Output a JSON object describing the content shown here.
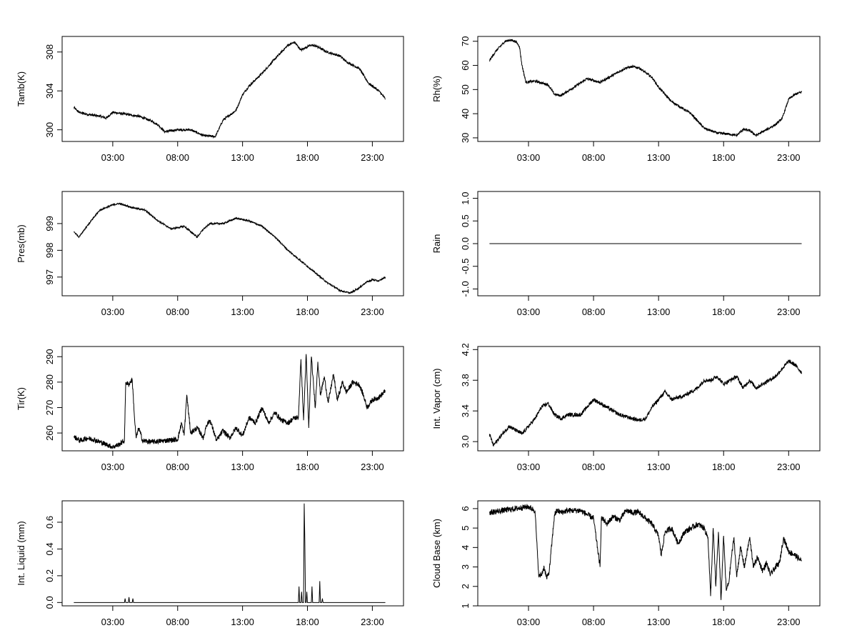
{
  "figure": {
    "background": "#ffffff",
    "line_color": "#000000",
    "x_tick_labels": [
      "03:00",
      "08:00",
      "13:00",
      "18:00",
      "23:00"
    ],
    "x_tick_hours": [
      3,
      8,
      13,
      18,
      23
    ],
    "x_range_hours": [
      -0.9,
      25.4
    ]
  },
  "chart_data": [
    {
      "type": "line",
      "ylabel": "Tamb(K)",
      "ylim": [
        298.8,
        309.6
      ],
      "yticks": [
        300,
        304,
        308
      ],
      "ytick_labels": [
        "300",
        "304",
        "308"
      ],
      "grid": false,
      "noise": 0.12,
      "series": [
        {
          "x": [
            0.0,
            0.4,
            1.0,
            2.0,
            2.5,
            3.0,
            4.0,
            5.0,
            6.0,
            6.5,
            7.0,
            8.0,
            9.0,
            10.0,
            10.9,
            11.5,
            12.0,
            12.5,
            13.0,
            13.5,
            14.5,
            15.5,
            16.5,
            17.0,
            17.5,
            18.2,
            18.7,
            19.5,
            20.5,
            21.0,
            22.0,
            22.7,
            23.5,
            24.0
          ],
          "y": [
            302.3,
            301.8,
            301.6,
            301.4,
            301.2,
            301.8,
            301.6,
            301.4,
            300.9,
            300.5,
            299.8,
            300.0,
            300.0,
            299.4,
            299.3,
            301.0,
            301.5,
            302.0,
            303.6,
            304.5,
            305.8,
            307.3,
            308.7,
            309.0,
            308.2,
            308.7,
            308.6,
            308.0,
            307.6,
            307.0,
            306.3,
            304.8,
            304.0,
            303.2
          ]
        }
      ]
    },
    {
      "type": "line",
      "ylabel": "Rh(%)",
      "ylim": [
        28.5,
        72.0
      ],
      "yticks": [
        30,
        40,
        50,
        60,
        70
      ],
      "ytick_labels": [
        "30",
        "40",
        "50",
        "60",
        "70"
      ],
      "grid": false,
      "noise": 0.5,
      "series": [
        {
          "x": [
            0.0,
            0.5,
            1.2,
            1.6,
            2.0,
            2.3,
            2.5,
            2.8,
            3.5,
            4.5,
            5.0,
            5.5,
            6.5,
            7.5,
            8.5,
            9.5,
            10.5,
            11.0,
            11.5,
            12.0,
            12.5,
            13.0,
            14.0,
            15.5,
            16.5,
            17.5,
            18.5,
            19.0,
            19.5,
            20.0,
            20.5,
            21.0,
            21.5,
            22.0,
            22.5,
            23.0,
            23.5,
            24.0
          ],
          "y": [
            62.0,
            66.0,
            70.0,
            70.5,
            70.0,
            68.0,
            60.0,
            53.0,
            53.5,
            52.0,
            48.0,
            47.5,
            51.0,
            54.5,
            53.0,
            56.0,
            59.0,
            59.5,
            59.0,
            57.0,
            55.0,
            51.0,
            45.0,
            40.0,
            34.0,
            32.0,
            31.5,
            31.0,
            33.5,
            33.0,
            31.0,
            32.5,
            34.0,
            35.5,
            38.0,
            46.0,
            48.0,
            49.0
          ]
        }
      ]
    },
    {
      "type": "line",
      "ylabel": "Pres(mb)",
      "ylim": [
        996.3,
        1000.2
      ],
      "yticks": [
        997,
        998,
        999
      ],
      "ytick_labels": [
        "997",
        "998",
        "999"
      ],
      "grid": false,
      "noise": 0.03,
      "series": [
        {
          "x": [
            0.0,
            0.4,
            1.0,
            1.5,
            2.0,
            2.5,
            3.0,
            3.5,
            4.5,
            5.5,
            6.5,
            7.5,
            8.5,
            9.5,
            10.0,
            10.5,
            11.5,
            12.5,
            13.5,
            14.5,
            15.5,
            16.5,
            17.5,
            18.5,
            19.5,
            20.5,
            21.3,
            22.0,
            22.5,
            23.0,
            23.5,
            24.0
          ],
          "y": [
            998.7,
            998.5,
            998.9,
            999.2,
            999.5,
            999.6,
            999.7,
            999.75,
            999.6,
            999.5,
            999.1,
            998.8,
            998.9,
            998.5,
            998.8,
            999.0,
            999.0,
            999.2,
            999.1,
            998.9,
            998.5,
            998.0,
            997.6,
            997.2,
            996.8,
            996.5,
            996.4,
            996.6,
            996.8,
            996.9,
            996.85,
            997.0
          ]
        }
      ]
    },
    {
      "type": "line",
      "ylabel": "Rain",
      "ylim": [
        -1.15,
        1.15
      ],
      "yticks": [
        -1.0,
        -0.5,
        0.0,
        0.5,
        1.0
      ],
      "ytick_labels": [
        "-1.0",
        "-0.5",
        "0.0",
        "0.5",
        "1.0"
      ],
      "grid": false,
      "noise": 0,
      "series": [
        {
          "x": [
            0.0,
            24.0
          ],
          "y": [
            0.0,
            0.0
          ]
        }
      ]
    },
    {
      "type": "line",
      "ylabel": "Tir(K)",
      "ylim": [
        253.0,
        294.0
      ],
      "yticks": [
        260,
        270,
        280,
        290
      ],
      "ytick_labels": [
        "260",
        "270",
        "280",
        "290"
      ],
      "grid": false,
      "noise": 1.0,
      "series": [
        {
          "x": [
            0.0,
            0.5,
            1.0,
            1.5,
            2.0,
            2.5,
            3.0,
            3.5,
            3.9,
            4.0,
            4.2,
            4.5,
            4.7,
            4.8,
            5.0,
            5.3,
            6.0,
            7.0,
            8.0,
            8.3,
            8.5,
            8.7,
            9.0,
            9.5,
            10.0,
            10.2,
            10.5,
            11.0,
            11.5,
            12.0,
            12.5,
            13.0,
            13.5,
            14.0,
            14.5,
            15.0,
            15.5,
            16.0,
            16.5,
            17.0,
            17.3,
            17.5,
            17.7,
            17.9,
            18.1,
            18.3,
            18.6,
            18.8,
            19.0,
            19.3,
            19.6,
            20.0,
            20.3,
            20.7,
            21.0,
            21.5,
            22.0,
            22.3,
            22.6,
            23.0,
            23.5,
            24.0
          ],
          "y": [
            258.5,
            257.0,
            258.0,
            257.5,
            256.5,
            255.5,
            254.5,
            255.5,
            257.0,
            280.0,
            279.0,
            281.0,
            264.0,
            258.0,
            262.0,
            257.0,
            256.5,
            257.0,
            257.5,
            264.0,
            259.0,
            275.0,
            260.0,
            262.0,
            258.0,
            263.0,
            265.0,
            257.0,
            261.0,
            258.0,
            262.0,
            259.0,
            266.0,
            264.0,
            270.0,
            264.0,
            268.0,
            265.0,
            264.0,
            266.0,
            266.0,
            289.0,
            265.0,
            291.0,
            262.0,
            290.0,
            270.0,
            288.0,
            275.0,
            282.0,
            272.0,
            283.0,
            273.0,
            280.0,
            276.0,
            280.0,
            279.0,
            275.0,
            270.0,
            273.0,
            274.0,
            276.5
          ]
        }
      ]
    },
    {
      "type": "line",
      "ylabel": "Int. Vapor (cm)",
      "ylim": [
        2.88,
        4.24
      ],
      "yticks": [
        3.0,
        3.4,
        3.8,
        4.2
      ],
      "ytick_labels": [
        "3.0",
        "3.4",
        "3.8",
        "4.2"
      ],
      "grid": false,
      "noise": 0.025,
      "series": [
        {
          "x": [
            0.0,
            0.3,
            1.0,
            1.5,
            2.0,
            2.5,
            3.0,
            3.5,
            4.0,
            4.5,
            5.0,
            5.5,
            6.0,
            7.0,
            8.0,
            9.0,
            10.0,
            11.0,
            11.5,
            12.0,
            12.5,
            13.0,
            13.5,
            14.0,
            15.0,
            15.5,
            16.0,
            16.5,
            17.0,
            17.5,
            18.0,
            18.5,
            19.0,
            19.5,
            20.0,
            20.5,
            21.0,
            22.0,
            22.5,
            23.0,
            23.5,
            24.0
          ],
          "y": [
            3.1,
            2.95,
            3.1,
            3.2,
            3.15,
            3.1,
            3.2,
            3.3,
            3.45,
            3.5,
            3.35,
            3.3,
            3.35,
            3.35,
            3.55,
            3.45,
            3.35,
            3.3,
            3.28,
            3.3,
            3.45,
            3.55,
            3.65,
            3.55,
            3.6,
            3.65,
            3.7,
            3.8,
            3.8,
            3.85,
            3.75,
            3.8,
            3.85,
            3.7,
            3.8,
            3.7,
            3.75,
            3.85,
            3.95,
            4.05,
            4.0,
            3.9
          ]
        }
      ]
    },
    {
      "type": "line",
      "ylabel": "Int. Liquid (mm)",
      "ylim": [
        -0.025,
        0.76
      ],
      "yticks": [
        0.0,
        0.2,
        0.4,
        0.6
      ],
      "ytick_labels": [
        "0.0",
        "0.2",
        "0.4",
        "0.6"
      ],
      "grid": false,
      "noise": 0,
      "series": [
        {
          "x": [
            0.0,
            3.9,
            3.95,
            4.0,
            4.2,
            4.25,
            4.3,
            4.5,
            4.55,
            4.6,
            17.3,
            17.35,
            17.4,
            17.5,
            17.55,
            17.6,
            17.7,
            17.75,
            17.8,
            17.85,
            17.9,
            17.95,
            18.0,
            18.3,
            18.35,
            18.4,
            18.9,
            18.95,
            19.0,
            19.1,
            19.15,
            19.2,
            24.0
          ],
          "y": [
            0.0,
            0.0,
            0.03,
            0.0,
            0.0,
            0.04,
            0.0,
            0.0,
            0.03,
            0.0,
            0.0,
            0.12,
            0.0,
            0.0,
            0.08,
            0.0,
            0.0,
            0.74,
            0.45,
            0.0,
            0.0,
            0.08,
            0.0,
            0.0,
            0.12,
            0.0,
            0.0,
            0.16,
            0.0,
            0.0,
            0.03,
            0.0,
            0.0
          ]
        }
      ]
    },
    {
      "type": "line",
      "ylabel": "Cloud Base (km)",
      "ylim": [
        1.0,
        6.4
      ],
      "yticks": [
        1,
        2,
        3,
        4,
        5,
        6
      ],
      "ytick_labels": [
        "1",
        "2",
        "3",
        "4",
        "5",
        "6"
      ],
      "grid": false,
      "noise": 0.15,
      "series": [
        {
          "x": [
            0.0,
            1.0,
            2.0,
            3.0,
            3.5,
            3.7,
            3.8,
            4.0,
            4.2,
            4.4,
            4.6,
            5.0,
            5.2,
            5.5,
            6.0,
            6.5,
            7.0,
            7.5,
            8.0,
            8.5,
            8.6,
            8.8,
            9.0,
            9.5,
            10.0,
            10.5,
            11.0,
            11.5,
            12.0,
            12.5,
            13.0,
            13.2,
            13.5,
            14.0,
            14.5,
            15.0,
            15.5,
            16.0,
            16.5,
            16.8,
            17.0,
            17.2,
            17.4,
            17.6,
            17.8,
            18.0,
            18.2,
            18.4,
            18.6,
            18.8,
            19.0,
            19.3,
            19.6,
            20.0,
            20.3,
            20.6,
            21.0,
            21.3,
            21.6,
            22.0,
            22.3,
            22.6,
            23.0,
            23.5,
            24.0
          ],
          "y": [
            5.8,
            5.9,
            6.0,
            6.1,
            5.9,
            3.5,
            2.5,
            2.6,
            3.0,
            2.4,
            2.8,
            5.7,
            5.9,
            5.8,
            5.9,
            5.9,
            5.9,
            5.7,
            5.5,
            3.0,
            5.5,
            5.4,
            5.2,
            5.6,
            5.4,
            5.9,
            5.8,
            5.8,
            5.5,
            5.2,
            4.6,
            3.6,
            4.8,
            5.0,
            4.2,
            4.8,
            5.0,
            5.2,
            5.0,
            4.5,
            1.5,
            5.0,
            2.0,
            4.8,
            1.3,
            4.6,
            1.8,
            2.2,
            3.5,
            4.5,
            2.5,
            4.0,
            3.0,
            4.5,
            3.0,
            3.5,
            2.8,
            3.2,
            2.6,
            3.0,
            3.2,
            4.5,
            3.8,
            3.6,
            3.3
          ]
        }
      ]
    }
  ]
}
